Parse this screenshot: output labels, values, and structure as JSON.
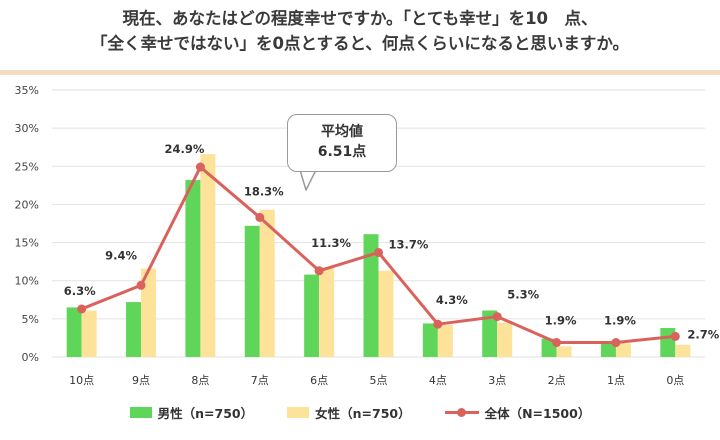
{
  "title": {
    "line1": "現在、あなたはどの程度幸せですか。「とても幸せ」を10　点、",
    "line2": "「全く幸せではない」を0点とすると、何点くらいになると思いますか。"
  },
  "callout": {
    "line1": "平均値",
    "line2": "6.51点"
  },
  "colors": {
    "male": "#5fd65a",
    "female": "#fde39a",
    "all": "#d9625c",
    "grid": "#e2e2e2"
  },
  "chart_data": {
    "type": "bar",
    "categories": [
      "10点",
      "9点",
      "8点",
      "7点",
      "6点",
      "5点",
      "4点",
      "3点",
      "2点",
      "1点",
      "0点"
    ],
    "ylim": [
      0,
      35
    ],
    "yticks": [
      "0%",
      "5%",
      "10%",
      "15%",
      "20%",
      "25%",
      "30%",
      "35%"
    ],
    "series": [
      {
        "name": "男性（n=750）",
        "type": "bar",
        "values": [
          6.5,
          7.2,
          23.2,
          17.2,
          10.8,
          16.1,
          4.4,
          6.1,
          2.4,
          2.0,
          3.8
        ]
      },
      {
        "name": "女性（n=750）",
        "type": "bar",
        "values": [
          6.1,
          11.6,
          26.6,
          19.3,
          11.8,
          11.3,
          4.2,
          4.5,
          1.4,
          1.8,
          1.6
        ]
      },
      {
        "name": "全体（N=1500）",
        "type": "line",
        "values": [
          6.3,
          9.4,
          24.9,
          18.3,
          11.3,
          13.7,
          4.3,
          5.3,
          1.9,
          1.9,
          2.7
        ],
        "labels": [
          "6.3%",
          "9.4%",
          "24.9%",
          "18.3%",
          "11.3%",
          "13.7%",
          "4.3%",
          "5.3%",
          "1.9%",
          "1.9%",
          "2.7%"
        ]
      }
    ],
    "grid": true,
    "legend": "bottom"
  }
}
